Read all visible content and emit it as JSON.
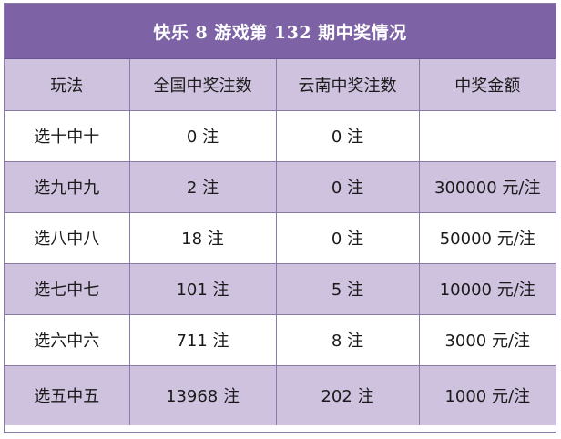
{
  "title": "快乐 8 游戏第 132 期中奖情况",
  "headers": [
    "玩法",
    "全国中奖注数",
    "云南中奖注数",
    "中奖金额"
  ],
  "rows": [
    {
      "play": "选十中十",
      "national": "0 注",
      "yunnan": "0 注",
      "amount": ""
    },
    {
      "play": "选九中九",
      "national": "2 注",
      "yunnan": "0 注",
      "amount": "300000 元/注"
    },
    {
      "play": "选八中八",
      "national": "18 注",
      "yunnan": "0 注",
      "amount": "50000 元/注"
    },
    {
      "play": "选七中七",
      "national": "101 注",
      "yunnan": "5 注",
      "amount": "10000 元/注"
    },
    {
      "play": "选六中六",
      "national": "711 注",
      "yunnan": "8 注",
      "amount": "3000 元/注"
    },
    {
      "play": "选五中五",
      "national": "13968 注",
      "yunnan": "202 注",
      "amount": "1000 元/注"
    }
  ],
  "colors": {
    "title_background": "#7d63a6",
    "header_background": "#cec2de",
    "alternate_row_background": "#cec2de",
    "border": "#8a7aa6"
  }
}
